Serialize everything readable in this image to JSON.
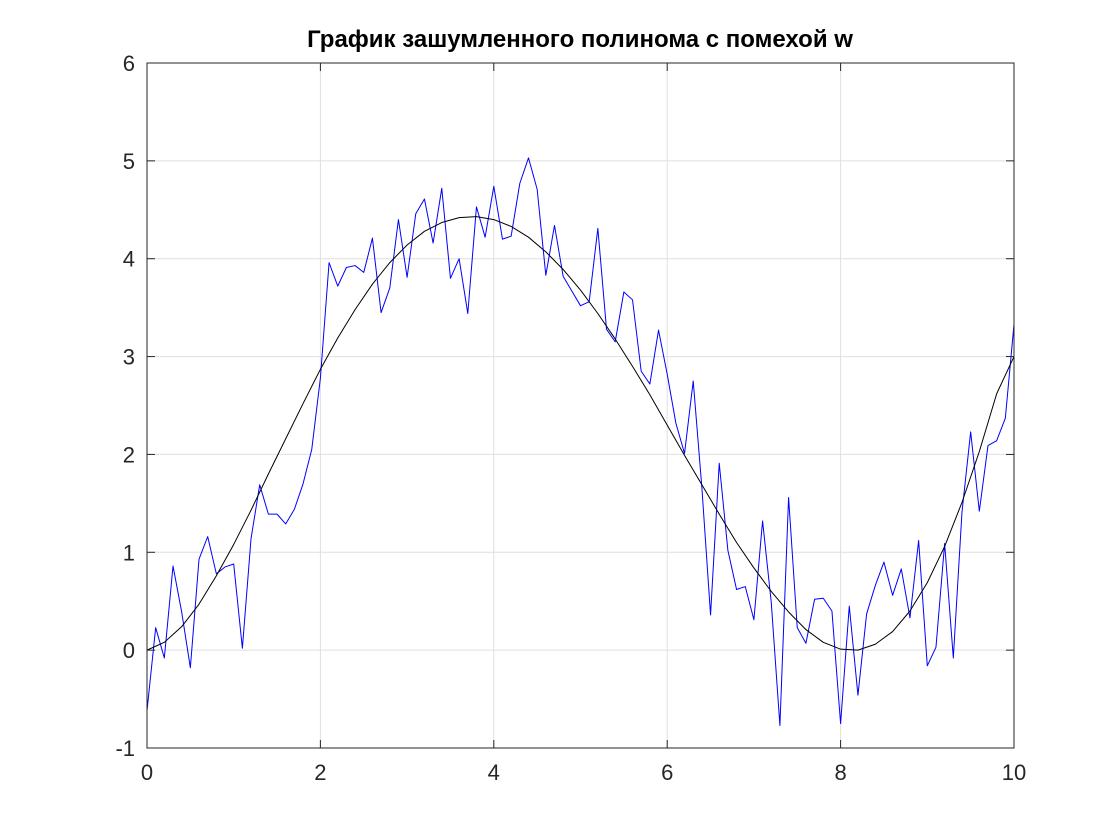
{
  "chart_data": {
    "type": "line",
    "title": "График зашумленного полинома с помехой w",
    "xlabel": "",
    "ylabel": "",
    "xlim": [
      0,
      10
    ],
    "ylim": [
      -1,
      6
    ],
    "xticks": [
      0,
      2,
      4,
      6,
      8,
      10
    ],
    "yticks": [
      -1,
      0,
      1,
      2,
      3,
      4,
      5,
      6
    ],
    "grid": true,
    "colors": {
      "noisy": "#0000ff",
      "smooth": "#000000",
      "grid": "#dfdfdf",
      "axis": "#262626"
    },
    "series": [
      {
        "color": "#0000ff",
        "x": [
          0,
          0.1,
          0.2,
          0.3,
          0.4,
          0.5,
          0.6,
          0.7,
          0.8,
          0.9,
          1.0,
          1.1,
          1.2,
          1.3,
          1.4,
          1.5,
          1.6,
          1.7,
          1.8,
          1.9,
          2.0,
          2.1,
          2.2,
          2.3,
          2.4,
          2.5,
          2.6,
          2.7,
          2.8,
          2.9,
          3.0,
          3.1,
          3.2,
          3.3,
          3.4,
          3.5,
          3.6,
          3.7,
          3.8,
          3.9,
          4.0,
          4.1,
          4.2,
          4.3,
          4.4,
          4.5,
          4.6,
          4.7,
          4.8,
          4.9,
          5.0,
          5.1,
          5.2,
          5.3,
          5.4,
          5.5,
          5.6,
          5.7,
          5.8,
          5.9,
          6.0,
          6.1,
          6.2,
          6.3,
          6.4,
          6.5,
          6.6,
          6.7,
          6.8,
          6.9,
          7.0,
          7.1,
          7.2,
          7.3,
          7.4,
          7.5,
          7.6,
          7.7,
          7.8,
          7.9,
          8.0,
          8.1,
          8.2,
          8.3,
          8.4,
          8.5,
          8.6,
          8.7,
          8.8,
          8.9,
          9.0,
          9.1,
          9.2,
          9.3,
          9.4,
          9.5,
          9.6,
          9.7,
          9.8,
          9.9,
          10.0
        ],
        "values": [
          -0.62,
          0.23,
          -0.08,
          0.86,
          0.39,
          -0.18,
          0.93,
          1.16,
          0.78,
          0.85,
          0.88,
          0.02,
          1.14,
          1.69,
          1.39,
          1.39,
          1.29,
          1.44,
          1.7,
          2.05,
          2.78,
          3.96,
          3.72,
          3.91,
          3.93,
          3.86,
          4.21,
          3.45,
          3.7,
          4.4,
          3.81,
          4.46,
          4.61,
          4.16,
          4.72,
          3.8,
          4.0,
          3.44,
          4.53,
          4.22,
          4.74,
          4.2,
          4.23,
          4.77,
          5.03,
          4.71,
          3.83,
          4.34,
          3.82,
          3.67,
          3.52,
          3.56,
          4.31,
          3.28,
          3.15,
          3.66,
          3.58,
          2.85,
          2.72,
          3.27,
          2.82,
          2.32,
          2.01,
          2.75,
          1.66,
          0.36,
          1.91,
          1.02,
          0.62,
          0.65,
          0.31,
          1.32,
          0.49,
          -0.77,
          1.56,
          0.23,
          0.07,
          0.52,
          0.53,
          0.4,
          -0.75,
          0.45,
          -0.46,
          0.37,
          0.66,
          0.9,
          0.56,
          0.83,
          0.33,
          1.12,
          -0.16,
          0.03,
          1.09,
          -0.08,
          1.41,
          2.23,
          1.42,
          2.09,
          2.14,
          2.37,
          3.33
        ]
      },
      {
        "color": "#000000",
        "x": [
          0,
          0.2,
          0.4,
          0.6,
          0.8,
          1.0,
          1.2,
          1.4,
          1.6,
          1.8,
          2.0,
          2.2,
          2.4,
          2.6,
          2.8,
          3.0,
          3.2,
          3.4,
          3.6,
          3.8,
          4.0,
          4.2,
          4.4,
          4.6,
          4.8,
          5.0,
          5.2,
          5.4,
          5.6,
          5.8,
          6.0,
          6.2,
          6.4,
          6.6,
          6.8,
          7.0,
          7.2,
          7.4,
          7.6,
          7.8,
          8.0,
          8.2,
          8.4,
          8.6,
          8.8,
          9.0,
          9.2,
          9.4,
          9.6,
          9.8,
          10.0
        ],
        "values": [
          0,
          0.08,
          0.24,
          0.47,
          0.76,
          1.08,
          1.43,
          1.8,
          2.16,
          2.52,
          2.87,
          3.19,
          3.48,
          3.74,
          3.96,
          4.14,
          4.28,
          4.37,
          4.42,
          4.43,
          4.4,
          4.33,
          4.22,
          4.07,
          3.89,
          3.68,
          3.44,
          3.18,
          2.9,
          2.61,
          2.3,
          1.99,
          1.69,
          1.39,
          1.1,
          0.84,
          0.6,
          0.39,
          0.21,
          0.08,
          0.01,
          0,
          0.06,
          0.19,
          0.4,
          0.69,
          1.06,
          1.51,
          2.03,
          2.62,
          3.0
        ]
      }
    ]
  }
}
